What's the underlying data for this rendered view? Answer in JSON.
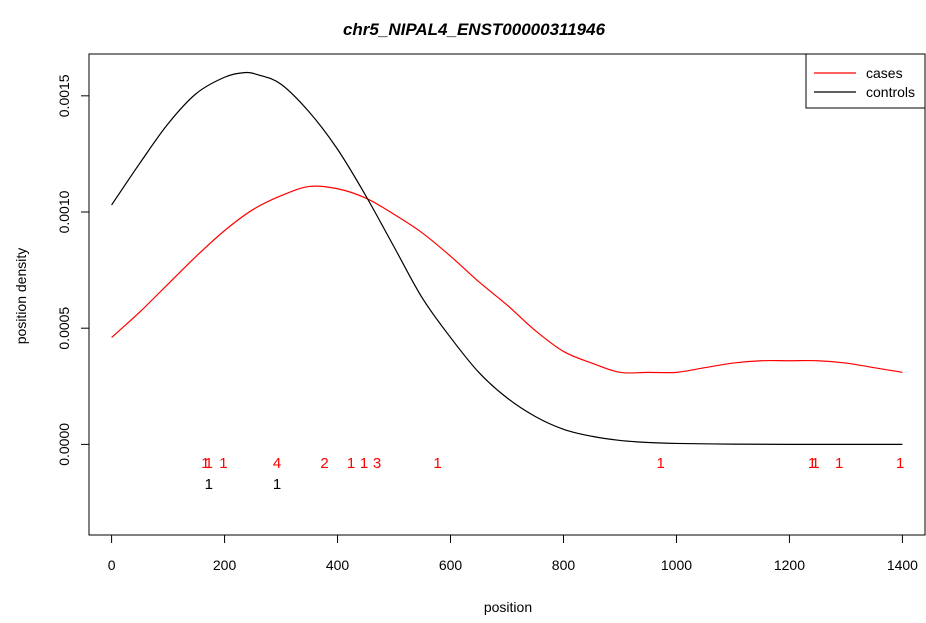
{
  "chart_data": {
    "type": "line",
    "title": "chr5_NIPAL4_ENST00000311946",
    "xlabel": "position",
    "ylabel": "position density",
    "xlim": [
      -40,
      1440
    ],
    "ylim": [
      -0.00039,
      0.00168
    ],
    "x_ticks": [
      0,
      200,
      400,
      600,
      800,
      1000,
      1200,
      1400
    ],
    "x_tick_labels": [
      "0",
      "200",
      "400",
      "600",
      "800",
      "1000",
      "1200",
      "1400"
    ],
    "y_ticks": [
      0,
      0.0005,
      0.001,
      0.0015
    ],
    "y_tick_labels": [
      "0.0000",
      "0.0005",
      "0.0010",
      "0.0015"
    ],
    "legend_position": "top-right",
    "grid": false,
    "series": [
      {
        "name": "cases",
        "color": "#ff0000",
        "x": [
          0,
          50,
          100,
          150,
          200,
          250,
          300,
          350,
          400,
          450,
          500,
          550,
          600,
          650,
          700,
          750,
          800,
          850,
          900,
          950,
          1000,
          1050,
          1100,
          1150,
          1200,
          1250,
          1300,
          1350,
          1400
        ],
        "y": [
          0.00046,
          0.00057,
          0.00069,
          0.00081,
          0.00092,
          0.00101,
          0.00107,
          0.00111,
          0.0011,
          0.00106,
          0.00099,
          0.00091,
          0.00081,
          0.0007,
          0.0006,
          0.00049,
          0.0004,
          0.00035,
          0.00031,
          0.00031,
          0.00031,
          0.00033,
          0.00035,
          0.00036,
          0.00036,
          0.00036,
          0.00035,
          0.00033,
          0.00031
        ]
      },
      {
        "name": "controls",
        "color": "#000000",
        "x": [
          0,
          50,
          100,
          150,
          200,
          235,
          260,
          300,
          350,
          400,
          450,
          500,
          550,
          600,
          650,
          700,
          750,
          800,
          850,
          900,
          950,
          1000,
          1100,
          1200,
          1300,
          1400
        ],
        "y": [
          0.00103,
          0.00121,
          0.00138,
          0.00151,
          0.00158,
          0.0016,
          0.00159,
          0.00155,
          0.00143,
          0.00127,
          0.00107,
          0.00085,
          0.00063,
          0.00046,
          0.00031,
          0.0002,
          0.00012,
          6.5e-05,
          3.5e-05,
          1.7e-05,
          8e-06,
          4e-06,
          1e-06,
          0,
          0,
          0
        ]
      }
    ],
    "position_counts": {
      "cases": [
        {
          "x": 166,
          "label": "1"
        },
        {
          "x": 172,
          "label": "1"
        },
        {
          "x": 198,
          "label": "1"
        },
        {
          "x": 293,
          "label": "4"
        },
        {
          "x": 377,
          "label": "2"
        },
        {
          "x": 424,
          "label": "1"
        },
        {
          "x": 447,
          "label": "1"
        },
        {
          "x": 470,
          "label": "3"
        },
        {
          "x": 577,
          "label": "1"
        },
        {
          "x": 972,
          "label": "1"
        },
        {
          "x": 1240,
          "label": "1"
        },
        {
          "x": 1246,
          "label": "1"
        },
        {
          "x": 1288,
          "label": "1"
        },
        {
          "x": 1396,
          "label": "1"
        }
      ],
      "controls": [
        {
          "x": 172,
          "label": "1"
        },
        {
          "x": 293,
          "label": "1"
        }
      ],
      "cases_y": -8e-05,
      "controls_y": -0.00017
    }
  }
}
